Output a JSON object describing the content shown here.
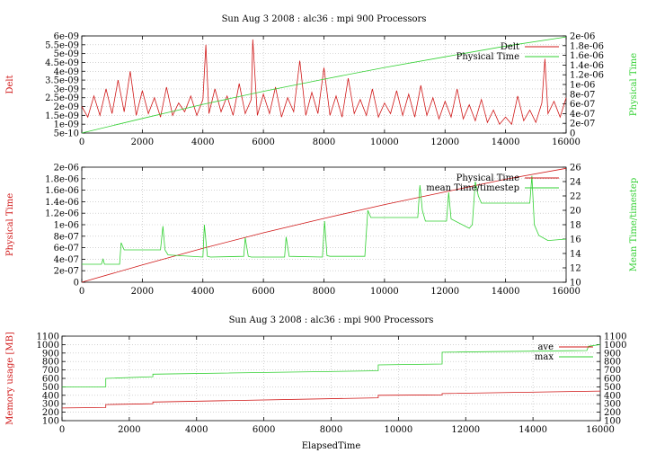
{
  "colors": {
    "red": "#d01818",
    "green": "#30d030"
  },
  "chart_data": [
    {
      "type": "line",
      "title": "Sun Aug 3 2008 : alc36 : mpi 900 Processors",
      "ylabel": "Delt",
      "y2label": "Physical Time",
      "xlabel": "",
      "xlim": [
        0,
        16000
      ],
      "ylim": [
        5e-10,
        6e-09
      ],
      "y2lim": [
        0,
        2e-06
      ],
      "xticks": [
        "0",
        "2000",
        "4000",
        "6000",
        "8000",
        "10000",
        "12000",
        "14000",
        "16000"
      ],
      "yticks": [
        "5e-10",
        "1e-09",
        "1.5e-09",
        "2e-09",
        "2.5e-09",
        "3e-09",
        "3.5e-09",
        "4e-09",
        "4.5e-09",
        "5e-09",
        "5.5e-09",
        "6e-09"
      ],
      "y2ticks": [
        "0",
        "2e-07",
        "4e-07",
        "6e-07",
        "8e-07",
        "1e-06",
        "1.2e-06",
        "1.4e-06",
        "1.6e-06",
        "1.8e-06",
        "2e-06"
      ],
      "legend_position": "top-right",
      "series": [
        {
          "name": "Delt",
          "axis": "y",
          "color": "#d01818",
          "x": [
            0,
            200,
            400,
            600,
            800,
            1000,
            1200,
            1400,
            1600,
            1800,
            2000,
            2200,
            2400,
            2600,
            2800,
            3000,
            3200,
            3400,
            3600,
            3800,
            4000,
            4100,
            4200,
            4400,
            4600,
            4800,
            5000,
            5200,
            5400,
            5600,
            5650,
            5800,
            6000,
            6200,
            6400,
            6600,
            6800,
            7000,
            7200,
            7400,
            7600,
            7800,
            8000,
            8200,
            8400,
            8600,
            8800,
            9000,
            9200,
            9400,
            9600,
            9800,
            10000,
            10200,
            10400,
            10600,
            10800,
            11000,
            11200,
            11400,
            11600,
            11800,
            12000,
            12200,
            12400,
            12600,
            12800,
            13000,
            13200,
            13400,
            13600,
            13800,
            14000,
            14200,
            14400,
            14600,
            14800,
            15000,
            15200,
            15300,
            15400,
            15600,
            15800,
            16000
          ],
          "y": [
            2e-09,
            1.4e-09,
            2.6e-09,
            1.5e-09,
            3e-09,
            1.6e-09,
            3.5e-09,
            1.7e-09,
            4e-09,
            1.5e-09,
            2.9e-09,
            1.6e-09,
            2.5e-09,
            1.4e-09,
            3.1e-09,
            1.5e-09,
            2.2e-09,
            1.7e-09,
            2.6e-09,
            1.5e-09,
            2.4e-09,
            5.5e-09,
            1.6e-09,
            3e-09,
            1.7e-09,
            2.6e-09,
            1.5e-09,
            3.3e-09,
            1.6e-09,
            2.4e-09,
            5.8e-09,
            1.5e-09,
            2.7e-09,
            1.6e-09,
            3.1e-09,
            1.4e-09,
            2.5e-09,
            1.7e-09,
            4.6e-09,
            1.5e-09,
            2.8e-09,
            1.6e-09,
            4.2e-09,
            1.5e-09,
            2.6e-09,
            1.4e-09,
            3.6e-09,
            1.6e-09,
            2.4e-09,
            1.5e-09,
            3e-09,
            1.4e-09,
            2.2e-09,
            1.6e-09,
            2.9e-09,
            1.5e-09,
            2.7e-09,
            1.4e-09,
            3.2e-09,
            1.5e-09,
            2.5e-09,
            1.3e-09,
            2.3e-09,
            1.4e-09,
            3e-09,
            1.3e-09,
            2.1e-09,
            1.2e-09,
            2.4e-09,
            1.1e-09,
            1.8e-09,
            1e-09,
            1.4e-09,
            1e-09,
            2.6e-09,
            1.2e-09,
            1.8e-09,
            1.1e-09,
            2.2e-09,
            4.7e-09,
            1.6e-09,
            2.3e-09,
            1.4e-09,
            2.5e-09
          ]
        },
        {
          "name": "Physical Time",
          "axis": "y2",
          "color": "#30d030",
          "x": [
            0,
            2000,
            4000,
            6000,
            8000,
            10000,
            12000,
            14000,
            16000
          ],
          "y": [
            0,
            3e-07,
            5.9e-07,
            8.6e-07,
            1.11e-06,
            1.35e-06,
            1.57e-06,
            1.79e-06,
            1.98e-06
          ]
        }
      ]
    },
    {
      "type": "line",
      "title": "",
      "ylabel": "Physical Time",
      "y2label": "Mean Time/timestep",
      "xlabel": "",
      "xlim": [
        0,
        16000
      ],
      "ylim": [
        0,
        2e-06
      ],
      "y2lim": [
        10,
        26
      ],
      "xticks": [
        "0",
        "2000",
        "4000",
        "6000",
        "8000",
        "10000",
        "12000",
        "14000",
        "16000"
      ],
      "yticks": [
        "0",
        "2e-07",
        "4e-07",
        "6e-07",
        "8e-07",
        "1e-06",
        "1.2e-06",
        "1.4e-06",
        "1.6e-06",
        "1.8e-06",
        "2e-06"
      ],
      "y2ticks": [
        "10",
        "12",
        "14",
        "16",
        "18",
        "20",
        "22",
        "24",
        "26"
      ],
      "legend_position": "top-right",
      "series": [
        {
          "name": "Physical Time",
          "axis": "y",
          "color": "#d01818",
          "x": [
            0,
            2000,
            4000,
            6000,
            8000,
            10000,
            12000,
            14000,
            16000
          ],
          "y": [
            0,
            3e-07,
            5.9e-07,
            8.6e-07,
            1.11e-06,
            1.35e-06,
            1.57e-06,
            1.79e-06,
            1.98e-06
          ]
        },
        {
          "name": "mean Time/timestep",
          "axis": "y2",
          "color": "#30d030",
          "x": [
            0,
            650,
            700,
            750,
            1250,
            1300,
            1400,
            2600,
            2680,
            2750,
            2850,
            4000,
            4050,
            4150,
            4250,
            5350,
            5400,
            5500,
            5600,
            6700,
            6750,
            6850,
            7950,
            8020,
            8100,
            8200,
            9350,
            9450,
            9550,
            11100,
            11170,
            11250,
            11350,
            12050,
            12120,
            12200,
            12800,
            12900,
            13000,
            13100,
            13200,
            14800,
            14870,
            14950,
            15100,
            15400,
            16000
          ],
          "y": [
            12.5,
            12.5,
            13.2,
            12.5,
            12.5,
            15.5,
            14.5,
            14.5,
            17.8,
            14.5,
            13.8,
            13.5,
            18.0,
            13.6,
            13.5,
            13.6,
            16.2,
            13.6,
            13.5,
            13.5,
            16.3,
            13.6,
            13.5,
            18.5,
            13.7,
            13.6,
            13.6,
            20.0,
            19.0,
            19.0,
            23.5,
            20.0,
            18.5,
            18.5,
            22.5,
            18.8,
            17.5,
            18.0,
            24.0,
            22.0,
            21.0,
            21.0,
            24.8,
            18.0,
            16.5,
            15.8,
            16.0
          ]
        }
      ]
    },
    {
      "type": "line",
      "title": "Sun Aug 3 2008 : alc36 : mpi 900 Processors",
      "ylabel": "Memory usage [MB]",
      "y2label": "",
      "xlabel": "ElapsedTime",
      "xlim": [
        0,
        16000
      ],
      "ylim": [
        100,
        1100
      ],
      "y2lim": [
        100,
        1100
      ],
      "xticks": [
        "0",
        "2000",
        "4000",
        "6000",
        "8000",
        "10000",
        "12000",
        "14000",
        "16000"
      ],
      "yticks": [
        "100",
        "200",
        "300",
        "400",
        "500",
        "600",
        "700",
        "800",
        "900",
        "1000",
        "1100"
      ],
      "y2ticks": [
        "100",
        "200",
        "300",
        "400",
        "500",
        "600",
        "700",
        "800",
        "900",
        "1000",
        "1100"
      ],
      "legend_position": "top-right",
      "series": [
        {
          "name": "ave",
          "axis": "y",
          "color": "#d01818",
          "x": [
            0,
            1300,
            1300,
            2700,
            2700,
            9400,
            9400,
            11300,
            11300,
            16000
          ],
          "y": [
            250,
            255,
            290,
            300,
            320,
            370,
            400,
            405,
            420,
            450
          ]
        },
        {
          "name": "max",
          "axis": "y",
          "color": "#30d030",
          "x": [
            0,
            1300,
            1300,
            2700,
            2700,
            9400,
            9400,
            11300,
            11300,
            15600,
            15650,
            16000
          ],
          "y": [
            500,
            500,
            600,
            620,
            650,
            690,
            760,
            770,
            910,
            930,
            980,
            1000
          ]
        }
      ]
    }
  ]
}
